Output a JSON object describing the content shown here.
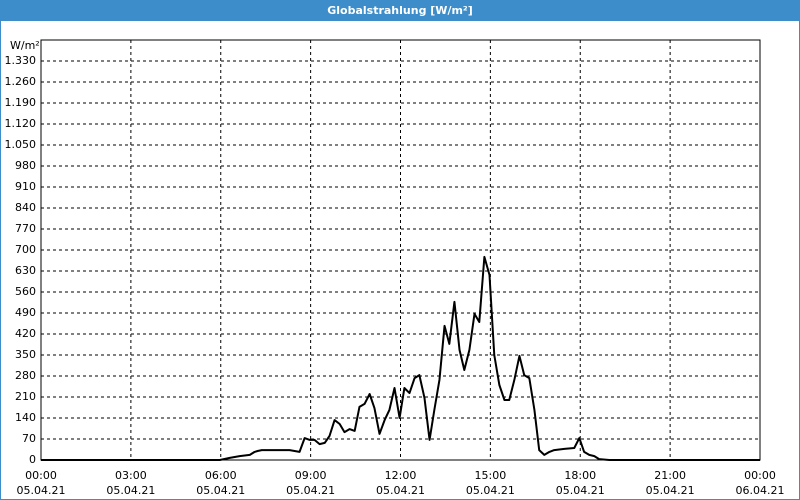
{
  "chart_data": {
    "type": "line",
    "title": "Globalstrahlung [W/m²]",
    "y_label": "W/m²",
    "x": [
      0,
      5.97,
      6.3,
      6.63,
      6.97,
      7.13,
      7.23,
      7.37,
      7.63,
      8.3,
      8.63,
      8.8,
      8.97,
      9.13,
      9.3,
      9.47,
      9.63,
      9.8,
      9.97,
      10.13,
      10.3,
      10.47,
      10.63,
      10.8,
      10.97,
      11.13,
      11.3,
      11.47,
      11.63,
      11.8,
      11.97,
      12.13,
      12.3,
      12.47,
      12.63,
      12.8,
      12.97,
      13.13,
      13.3,
      13.47,
      13.63,
      13.8,
      13.97,
      14.13,
      14.3,
      14.47,
      14.63,
      14.8,
      14.97,
      15.13,
      15.3,
      15.47,
      15.63,
      15.8,
      15.97,
      16.13,
      16.3,
      16.47,
      16.63,
      16.8,
      16.97,
      17.13,
      17.47,
      17.8,
      17.97,
      18.13,
      18.3,
      18.47,
      18.63,
      18.97,
      24
    ],
    "values": [
      0,
      0,
      7,
      13,
      17,
      27,
      30,
      33,
      33,
      33,
      27,
      73,
      67,
      67,
      53,
      57,
      80,
      133,
      120,
      93,
      103,
      97,
      177,
      187,
      220,
      173,
      87,
      133,
      167,
      240,
      140,
      240,
      223,
      273,
      283,
      207,
      67,
      167,
      267,
      447,
      387,
      527,
      367,
      300,
      367,
      487,
      460,
      677,
      617,
      350,
      250,
      200,
      200,
      267,
      347,
      283,
      273,
      167,
      33,
      17,
      27,
      33,
      37,
      40,
      73,
      27,
      17,
      13,
      3,
      0,
      0
    ],
    "color": "#000000",
    "xlim": [
      0,
      24
    ],
    "xticks": [
      {
        "value": 0,
        "label": "00:00"
      },
      {
        "value": 3,
        "label": "03:00"
      },
      {
        "value": 6,
        "label": "06:00"
      },
      {
        "value": 9,
        "label": "09:00"
      },
      {
        "value": 12,
        "label": "12:00"
      },
      {
        "value": 15,
        "label": "15:00"
      },
      {
        "value": 18,
        "label": "18:00"
      },
      {
        "value": 21,
        "label": "21:00"
      },
      {
        "value": 24,
        "label": "00:00"
      }
    ],
    "xtick_dates": [
      "05.04.21",
      "05.04.21",
      "05.04.21",
      "05.04.21",
      "05.04.21",
      "05.04.21",
      "05.04.21",
      "05.04.21",
      "06.04.21"
    ],
    "ylim": [
      0,
      1400
    ],
    "yticks": [
      0,
      70,
      140,
      210,
      280,
      350,
      420,
      490,
      560,
      630,
      700,
      770,
      840,
      910,
      980,
      {
        "value": 1050,
        "label": "1.050"
      },
      {
        "value": 1120,
        "label": "1.120"
      },
      {
        "value": 1190,
        "label": "1.190"
      },
      {
        "value": 1260,
        "label": "1.260"
      },
      {
        "value": 1330,
        "label": "1.330"
      }
    ],
    "grid": true
  }
}
